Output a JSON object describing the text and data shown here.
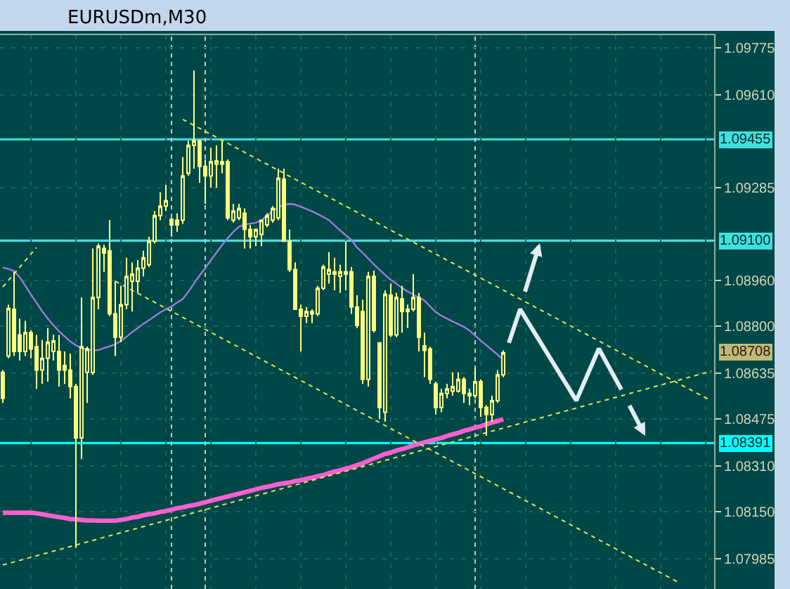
{
  "chart_data": {
    "type": "candlestick",
    "title": "EURUSDm,M30",
    "color": "#ffff80",
    "categories": [
      null,
      null,
      null,
      null,
      null,
      null,
      null,
      null,
      null,
      null,
      null,
      null,
      null,
      null,
      null,
      null,
      null,
      null,
      null,
      null,
      null,
      null,
      null,
      null,
      null,
      null,
      null,
      null,
      null,
      null,
      null,
      null,
      null,
      null,
      null,
      null,
      null,
      null,
      null,
      null,
      null,
      null,
      null,
      null,
      null,
      null,
      null,
      null,
      null,
      null,
      null,
      null,
      null,
      null,
      null,
      null,
      null,
      null,
      null,
      null,
      null,
      null,
      null,
      null,
      null,
      null,
      null,
      null,
      null,
      null,
      null,
      null,
      null,
      null,
      null,
      null,
      null,
      null,
      null,
      null,
      null,
      null,
      null,
      null,
      null,
      null,
      null,
      null,
      null,
      null,
      null,
      null,
      null,
      null,
      null,
      null,
      null,
      null,
      null,
      null,
      null,
      null,
      null,
      null,
      null,
      null,
      null,
      null,
      null,
      null,
      null,
      null,
      null,
      null,
      null,
      null,
      null,
      null,
      null,
      null,
      null,
      null,
      null,
      null,
      null,
      null,
      null
    ],
    "ohlc": [
      [
        1.08639,
        1.08647,
        1.08532,
        1.08548
      ],
      [
        1.08696,
        1.08876,
        1.08688,
        1.08863
      ],
      [
        1.0886,
        1.08991,
        1.08696,
        1.08712
      ],
      [
        1.0877,
        1.08827,
        1.0868,
        1.08712
      ],
      [
        1.08712,
        1.08819,
        1.08696,
        1.08778
      ],
      [
        1.08778,
        1.08786,
        1.08688,
        1.08721
      ],
      [
        1.08729,
        1.0877,
        1.08581,
        1.08647
      ],
      [
        1.08647,
        1.08753,
        1.08598,
        1.08688
      ],
      [
        1.08688,
        1.08794,
        1.08606,
        1.08745
      ],
      [
        1.08712,
        1.0877,
        1.0868,
        1.08749
      ],
      [
        1.08712,
        1.0877,
        1.08589,
        1.08647
      ],
      [
        1.08663,
        1.08712,
        1.08598,
        1.08647
      ],
      [
        1.08647,
        1.08704,
        1.08548,
        1.08589
      ],
      [
        1.08589,
        1.08598,
        1.08024,
        1.08409
      ],
      [
        1.08409,
        1.08901,
        1.08335,
        1.08729
      ],
      [
        1.08639,
        1.08729,
        1.08532,
        1.08721
      ],
      [
        1.08639,
        1.09073,
        1.0863,
        1.08901
      ],
      [
        1.08901,
        1.0909,
        1.0886,
        1.09081
      ],
      [
        1.09073,
        1.09086,
        1.08991,
        1.09057
      ],
      [
        1.09065,
        1.09172,
        1.08835,
        1.08844
      ],
      [
        1.08844,
        1.08958,
        1.08696,
        1.08762
      ],
      [
        1.08762,
        1.08942,
        1.08745,
        1.08876
      ],
      [
        1.08876,
        1.0904,
        1.0886,
        1.08975
      ],
      [
        1.08958,
        1.09024,
        1.08852,
        1.08983
      ],
      [
        1.08958,
        1.09032,
        1.08917,
        1.09004
      ],
      [
        1.09004,
        1.09065,
        1.08975,
        1.0904
      ],
      [
        1.09016,
        1.09114,
        1.09008,
        1.09098
      ],
      [
        1.09098,
        1.09204,
        1.0909,
        1.09188
      ],
      [
        1.09188,
        1.0927,
        1.09172,
        1.09221
      ],
      [
        1.09221,
        1.09295,
        1.09204,
        1.0924
      ],
      [
        1.09175,
        1.0918,
        1.09114,
        1.09155
      ],
      [
        1.09172,
        1.09196,
        1.09131,
        1.09155
      ],
      [
        1.09172,
        1.09393,
        1.09159,
        1.09327
      ],
      [
        1.09336,
        1.0945,
        1.09327,
        1.09434
      ],
      [
        1.09434,
        1.09696,
        1.09352,
        1.0945
      ],
      [
        1.0945,
        1.0945,
        1.09303,
        1.0936
      ],
      [
        1.0936,
        1.09385,
        1.09229,
        1.09327
      ],
      [
        1.09327,
        1.09426,
        1.09286,
        1.09377
      ],
      [
        1.09368,
        1.09434,
        1.09286,
        1.0938
      ],
      [
        1.09368,
        1.0945,
        1.09336,
        1.09377
      ],
      [
        1.09377,
        1.09385,
        1.09172,
        1.0918
      ],
      [
        1.09172,
        1.09229,
        1.09163,
        1.09204
      ],
      [
        1.0918,
        1.09229,
        1.09172,
        1.09213
      ],
      [
        1.09196,
        1.09213,
        1.09073,
        1.09139
      ],
      [
        1.09139,
        1.09155,
        1.09073,
        1.09114
      ],
      [
        1.09114,
        1.09139,
        1.09081,
        1.09139
      ],
      [
        1.09122,
        1.09172,
        1.09081,
        1.09172
      ],
      [
        1.09155,
        1.09196,
        1.09147,
        1.09188
      ],
      [
        1.09172,
        1.09221,
        1.09163,
        1.09213
      ],
      [
        1.0918,
        1.09352,
        1.09172,
        1.09319
      ],
      [
        1.09316,
        1.09352,
        1.09098,
        1.09098
      ],
      [
        1.09098,
        1.09139,
        1.08991,
        1.08999
      ],
      [
        1.08999,
        1.09024,
        1.0886,
        1.0886
      ],
      [
        1.0886,
        1.08876,
        1.08712,
        1.08835
      ],
      [
        1.08835,
        1.08868,
        1.08811,
        1.08852
      ],
      [
        1.08844,
        1.0886,
        1.08811,
        1.08852
      ],
      [
        1.08844,
        1.08942,
        1.08835,
        1.08934
      ],
      [
        1.08934,
        1.09016,
        1.08926,
        1.09008
      ],
      [
        1.08983,
        1.0906,
        1.0895,
        1.08999
      ],
      [
        1.08991,
        1.0904,
        1.08926,
        1.08983
      ],
      [
        1.08975,
        1.09016,
        1.08917,
        1.08991
      ],
      [
        1.08983,
        1.09098,
        1.08926,
        1.08991
      ],
      [
        1.08991,
        1.09008,
        1.08844,
        1.08868
      ],
      [
        1.08868,
        1.08909,
        1.08794,
        1.08803
      ],
      [
        1.08852,
        1.08893,
        1.08598,
        1.08614
      ],
      [
        1.08614,
        1.08991,
        1.08589,
        1.08975
      ],
      [
        1.08975,
        1.08995,
        1.08778,
        1.08786
      ],
      [
        1.08742,
        1.08745,
        1.08475,
        1.08516
      ],
      [
        1.08499,
        1.08926,
        1.08466,
        1.08913
      ],
      [
        1.08909,
        1.0895,
        1.08762,
        1.0877
      ],
      [
        1.0877,
        1.08917,
        1.08762,
        1.08901
      ],
      [
        1.08896,
        1.08942,
        1.08778,
        1.08852
      ],
      [
        1.08852,
        1.08876,
        1.08794,
        1.0886
      ],
      [
        1.0886,
        1.08983,
        1.08852,
        1.08901
      ],
      [
        1.08901,
        1.08917,
        1.08712,
        1.08762
      ],
      [
        1.08732,
        1.08778,
        1.08622,
        1.08716
      ],
      [
        1.08721,
        1.08729,
        1.08598,
        1.08614
      ],
      [
        1.08598,
        1.08606,
        1.08491,
        1.08516
      ],
      [
        1.08516,
        1.08581,
        1.08499,
        1.08565
      ],
      [
        1.08565,
        1.08598,
        1.08548,
        1.08581
      ],
      [
        1.08573,
        1.08639,
        1.08557,
        1.08589
      ],
      [
        1.08573,
        1.08639,
        1.08568,
        1.08614
      ],
      [
        1.08614,
        1.08622,
        1.08532,
        1.08565
      ],
      [
        1.08565,
        1.08581,
        1.08524,
        1.08557
      ],
      [
        1.08557,
        1.08655,
        1.08548,
        1.08606
      ],
      [
        1.08606,
        1.08614,
        1.08483,
        1.08516
      ],
      [
        1.08516,
        1.08524,
        1.08417,
        1.08491
      ],
      [
        1.08491,
        1.08557,
        1.08466,
        1.0854
      ],
      [
        1.0854,
        1.08647,
        1.08532,
        1.0863
      ],
      [
        1.0863,
        1.08716,
        1.08622,
        1.08708
      ],
      null,
      null,
      null,
      null,
      null,
      null,
      null,
      null,
      null,
      null,
      null,
      null,
      null,
      null,
      null,
      null,
      null,
      null,
      null,
      null,
      null,
      null,
      null,
      null,
      null,
      null,
      null,
      null,
      null,
      null,
      null,
      null,
      null,
      null,
      null,
      null,
      null
    ],
    "series": [
      {
        "type": "line",
        "color": "#9b7bd8",
        "values": [
          1.09006,
          1.09001,
          1.08994,
          1.08972,
          1.08942,
          1.08912,
          1.08883,
          1.08853,
          1.08827,
          1.08804,
          1.08783,
          1.08765,
          1.08747,
          1.08734,
          1.08724,
          1.08719,
          1.08716,
          1.08717,
          1.08724,
          1.0873,
          1.08737,
          1.08749,
          1.08763,
          1.0878,
          1.08794,
          1.08809,
          1.08822,
          1.08835,
          1.08849,
          1.0886,
          1.0887,
          1.08883,
          1.08896,
          1.08921,
          1.0895,
          1.08978,
          1.09004,
          1.09032,
          1.09058,
          1.09085,
          1.09109,
          1.09131,
          1.09149,
          1.09157,
          1.0916,
          1.09163,
          1.09172,
          1.09188,
          1.09204,
          1.09218,
          1.09226,
          1.09229,
          1.09226,
          1.09219,
          1.09211,
          1.09203,
          1.09193,
          1.09183,
          1.09172,
          1.09154,
          1.09136,
          1.09119,
          1.09103,
          1.09076,
          1.09058,
          1.09037,
          1.09017,
          1.08998,
          1.0898,
          1.08963,
          1.08949,
          1.08934,
          1.08922,
          1.08911,
          1.08901,
          1.0889,
          1.0887,
          1.0885,
          1.08837,
          1.08827,
          1.08817,
          1.08808,
          1.08798,
          1.08785,
          1.08768,
          1.0875,
          1.08734,
          1.08717,
          1.08701,
          1.08683,
          null,
          null,
          null,
          null,
          null,
          null,
          null,
          null,
          null,
          null,
          null,
          null,
          null,
          null,
          null,
          null,
          null,
          null,
          null,
          null,
          null,
          null,
          null,
          null,
          null,
          null,
          null,
          null,
          null,
          null,
          null,
          null,
          null,
          null,
          null,
          null,
          null
        ]
      },
      {
        "type": "line",
        "color": "#ff5fcf",
        "values": [
          1.08147,
          1.08147,
          1.08147,
          1.08147,
          1.08147,
          1.08147,
          1.08145,
          1.08142,
          1.08138,
          1.08135,
          1.08132,
          1.08129,
          1.08125,
          1.08124,
          1.08122,
          1.0812,
          1.0812,
          1.08119,
          1.08119,
          1.08119,
          1.08119,
          1.08122,
          1.08125,
          1.0813,
          1.08133,
          1.08138,
          1.08142,
          1.08145,
          1.0815,
          1.08153,
          1.08158,
          1.08163,
          1.08166,
          1.08171,
          1.08174,
          1.08179,
          1.08184,
          1.08189,
          1.08194,
          1.08199,
          1.08204,
          1.08209,
          1.08214,
          1.08219,
          1.08224,
          1.08229,
          1.08234,
          1.08238,
          1.08242,
          1.08247,
          1.0825,
          1.08253,
          1.08258,
          1.08261,
          1.08266,
          1.0827,
          1.08275,
          1.08279,
          1.08286,
          1.08291,
          1.08296,
          1.08302,
          1.08307,
          1.08314,
          1.0832,
          1.08329,
          1.08337,
          1.08345,
          1.08353,
          1.08358,
          1.08365,
          1.0837,
          1.08376,
          1.08383,
          1.08388,
          1.08394,
          1.08399,
          1.08404,
          1.08409,
          1.08416,
          1.08422,
          1.08427,
          1.08434,
          1.08439,
          1.08445,
          1.0845,
          1.08457,
          1.08463,
          1.08468,
          1.08475,
          null,
          null,
          null,
          null,
          null,
          null,
          null,
          null,
          null,
          null,
          null,
          null,
          null,
          null,
          null,
          null,
          null,
          null,
          null,
          null,
          null,
          null,
          null,
          null,
          null,
          null,
          null,
          null,
          null,
          null,
          null,
          null,
          null,
          null,
          null,
          null,
          null
        ]
      },
      {
        "type": "line",
        "color": "#e6e64c",
        "line_style": "dotted",
        "values": [
          null,
          null,
          null,
          null,
          null,
          null,
          null,
          null,
          null,
          null,
          null,
          null,
          null,
          null,
          null,
          null,
          null,
          null,
          null,
          null,
          null,
          null,
          null,
          null,
          null,
          null,
          null,
          null,
          null,
          null,
          null,
          null,
          1.09525,
          null,
          null,
          null,
          null,
          null,
          null,
          null,
          null,
          null,
          null,
          null,
          null,
          null,
          null,
          null,
          null,
          null,
          null,
          null,
          null,
          null,
          null,
          null,
          null,
          null,
          null,
          null,
          null,
          null,
          null,
          null,
          null,
          null,
          null,
          null,
          null,
          null,
          null,
          null,
          null,
          null,
          null,
          null,
          null,
          null,
          null,
          null,
          null,
          null,
          null,
          null,
          null,
          null,
          null,
          null,
          null,
          null,
          null,
          null,
          null,
          null,
          null,
          null,
          null,
          null,
          null,
          null,
          null,
          null,
          null,
          null,
          null,
          null,
          null,
          null,
          null,
          null,
          null,
          null,
          null,
          null,
          null,
          null,
          null,
          null,
          null,
          null,
          null,
          null,
          null,
          null,
          null,
          null,
          1.08539
        ]
      },
      {
        "type": "line",
        "color": "#e6e64c",
        "line_style": "dotted",
        "values": [
          null,
          null,
          null,
          null,
          null,
          null,
          null,
          null,
          null,
          null,
          null,
          null,
          null,
          null,
          null,
          null,
          null,
          null,
          null,
          null,
          1.08958,
          null,
          null,
          null,
          null,
          null,
          null,
          null,
          null,
          null,
          null,
          null,
          null,
          null,
          null,
          null,
          null,
          null,
          null,
          null,
          null,
          null,
          null,
          null,
          null,
          null,
          null,
          null,
          null,
          null,
          null,
          null,
          null,
          null,
          null,
          null,
          null,
          null,
          null,
          null,
          null,
          null,
          null,
          null,
          null,
          null,
          null,
          null,
          null,
          null,
          null,
          null,
          null,
          null,
          null,
          null,
          null,
          null,
          null,
          null,
          null,
          null,
          null,
          null,
          null,
          null,
          null,
          null,
          null,
          null,
          null,
          null,
          null,
          null,
          null,
          null,
          null,
          null,
          null,
          null,
          null,
          null,
          null,
          null,
          null,
          null,
          null,
          null,
          null,
          null,
          null,
          null,
          null,
          null,
          null,
          null,
          null,
          null,
          null,
          null,
          1.07905,
          null,
          null,
          null,
          null,
          null,
          null
        ]
      },
      {
        "type": "line",
        "color": "#e6e64c",
        "line_style": "dotted",
        "values": [
          1.07964,
          null,
          null,
          null,
          null,
          null,
          null,
          null,
          null,
          null,
          null,
          null,
          null,
          null,
          null,
          null,
          null,
          null,
          null,
          null,
          null,
          null,
          null,
          null,
          null,
          null,
          null,
          null,
          null,
          null,
          null,
          null,
          null,
          null,
          null,
          null,
          null,
          null,
          null,
          null,
          null,
          null,
          null,
          null,
          null,
          null,
          null,
          null,
          null,
          null,
          null,
          null,
          null,
          null,
          null,
          null,
          null,
          null,
          null,
          null,
          null,
          null,
          null,
          null,
          null,
          null,
          null,
          null,
          null,
          null,
          null,
          null,
          null,
          null,
          null,
          null,
          null,
          null,
          null,
          null,
          null,
          null,
          null,
          null,
          null,
          null,
          null,
          null,
          null,
          null,
          null,
          null,
          null,
          null,
          null,
          null,
          null,
          null,
          null,
          null,
          null,
          null,
          null,
          null,
          null,
          null,
          null,
          null,
          null,
          null,
          null,
          null,
          null,
          null,
          null,
          null,
          null,
          null,
          null,
          null,
          null,
          null,
          null,
          null,
          null,
          null,
          1.08643
        ]
      },
      {
        "type": "line",
        "color": "#e6e64c",
        "line_style": "dotted",
        "values": [
          1.08938,
          null,
          null,
          null,
          null,
          null,
          1.09076,
          null,
          null,
          null,
          null,
          null,
          null,
          null,
          null,
          null,
          null,
          null,
          null,
          null,
          null,
          null,
          null,
          null,
          null,
          null,
          null,
          null,
          null,
          null,
          null,
          null,
          null,
          null,
          null,
          null,
          null,
          null,
          null,
          null,
          null,
          null,
          null,
          null,
          null,
          null,
          null,
          null,
          null,
          null,
          null,
          null,
          null,
          null,
          null,
          null,
          null,
          null,
          null,
          null,
          null,
          null,
          null,
          null,
          null,
          null,
          null,
          null,
          null,
          null,
          null,
          null,
          null,
          null,
          null,
          null,
          null,
          null,
          null,
          null,
          null,
          null,
          null,
          null,
          null,
          null,
          null,
          null,
          null,
          null,
          null,
          null,
          null,
          null,
          null,
          null,
          null,
          null,
          null,
          null,
          null,
          null,
          null,
          null,
          null,
          null,
          null,
          null,
          null,
          null,
          null,
          null,
          null,
          null,
          null,
          null,
          null,
          null,
          null,
          null,
          null,
          null,
          null,
          null,
          null,
          null,
          null
        ]
      },
      {
        "type": "line",
        "color": "#e4ecf6",
        "values": [
          null,
          null,
          null,
          null,
          null,
          null,
          null,
          null,
          null,
          null,
          null,
          null,
          null,
          null,
          null,
          null,
          null,
          null,
          null,
          null,
          null,
          null,
          null,
          null,
          null,
          null,
          null,
          null,
          null,
          null,
          null,
          null,
          null,
          null,
          null,
          null,
          null,
          null,
          null,
          null,
          null,
          null,
          null,
          null,
          null,
          null,
          null,
          null,
          null,
          null,
          null,
          null,
          null,
          null,
          null,
          null,
          null,
          null,
          null,
          null,
          null,
          null,
          null,
          null,
          null,
          null,
          null,
          null,
          null,
          null,
          null,
          null,
          null,
          null,
          null,
          null,
          null,
          null,
          null,
          null,
          null,
          null,
          null,
          null,
          null,
          null,
          null,
          null,
          null,
          null,
          1.08742,
          null,
          1.0886,
          null,
          null,
          null,
          null,
          null,
          null,
          null,
          null,
          null,
          1.0854,
          null,
          null,
          null,
          1.08722,
          null,
          null,
          null,
          1.08579,
          null,
          null,
          null,
          null,
          null,
          null,
          null,
          null,
          null,
          null,
          null,
          null,
          null,
          null,
          null,
          null
        ]
      }
    ],
    "ylim": [
      1.0788,
      1.0982
    ],
    "yticks": [
      1.09775,
      {
        "value": 1.0961,
        "label": "1.09610"
      },
      1.09285,
      {
        "value": 1.0896,
        "label": "1.08960"
      },
      {
        "value": 1.088,
        "label": "1.08800"
      },
      1.08635,
      1.08475,
      {
        "value": 1.0831,
        "label": "1.08310"
      },
      {
        "value": 1.0815,
        "label": "1.08150"
      },
      1.07985
    ],
    "ref_lines": [
      {
        "axis": "y",
        "value": 1.09455,
        "label": "1.09455",
        "color": "#40e0e0"
      },
      {
        "axis": "y",
        "value": 1.091,
        "label": "1.09100",
        "color": "#40e0e0"
      },
      {
        "axis": "y",
        "value": 1.08391,
        "label": "1.08391",
        "color": "#00ffff"
      }
    ],
    "annotations": [
      "1.08708"
    ],
    "grid": true,
    "tick_labels": "y"
  }
}
